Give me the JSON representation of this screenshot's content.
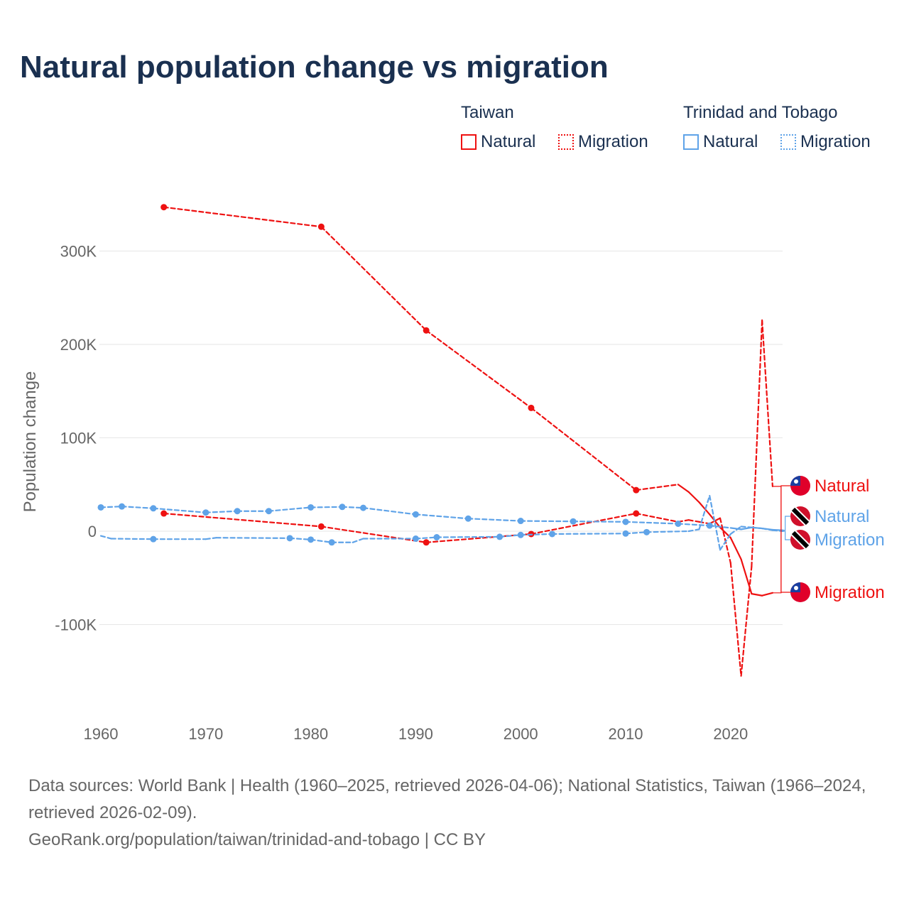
{
  "title": "Natural population change vs migration",
  "legend": {
    "groups": [
      {
        "name": "Taiwan",
        "items": [
          {
            "label": "Natural",
            "style": "solid"
          },
          {
            "label": "Migration",
            "style": "dotted"
          }
        ],
        "color": "#ee1111"
      },
      {
        "name": "Trinidad and Tobago",
        "items": [
          {
            "label": "Natural",
            "style": "solid"
          },
          {
            "label": "Migration",
            "style": "dotted"
          }
        ],
        "color": "#5fa3e8"
      }
    ]
  },
  "footer": {
    "sources": "Data sources: World Bank | Health (1960–2025, retrieved 2026-04-06); National Statistics, Taiwan (1966–2024, retrieved 2026-02-09).",
    "credit": "GeoRank.org/population/taiwan/trinidad-and-tobago | CC BY"
  },
  "chart_data": {
    "type": "line",
    "title": "Natural population change vs migration",
    "xlabel": "",
    "ylabel": "Population change",
    "xlim": [
      1960,
      2025
    ],
    "ylim": [
      -160000,
      360000
    ],
    "xticks": [
      1960,
      1970,
      1980,
      1990,
      2000,
      2010,
      2020
    ],
    "xtick_labels": [
      "1960",
      "1970",
      "1980",
      "1990",
      "2000",
      "2010",
      "2020"
    ],
    "yticks": [
      -100000,
      0,
      100000,
      200000,
      300000
    ],
    "ytick_labels": [
      "-100K",
      "0",
      "100K",
      "200K",
      "300K"
    ],
    "grid": true,
    "legend_position": "top-right",
    "series": [
      {
        "name": "Taiwan Natural",
        "end_label": "Natural",
        "color": "#ee1111",
        "dash": false,
        "x": [
          1966,
          1981,
          1991,
          2001,
          2011,
          2015,
          2016,
          2017,
          2018,
          2019,
          2020,
          2021,
          2022,
          2023,
          2024
        ],
        "y": [
          347000,
          326000,
          215000,
          132000,
          44000,
          50000,
          42000,
          31000,
          18000,
          4000,
          -7000,
          -30000,
          -67000,
          -69000,
          -66000
        ]
      },
      {
        "name": "Taiwan Migration",
        "end_label": "Migration",
        "color": "#ee1111",
        "dash": true,
        "x": [
          1966,
          1981,
          1991,
          2001,
          2011,
          2015,
          2016,
          2017,
          2018,
          2019,
          2020,
          2021,
          2022,
          2023,
          2024
        ],
        "y": [
          19000,
          5000,
          -12000,
          -3000,
          19000,
          10000,
          12000,
          10000,
          8000,
          14000,
          -34000,
          -155000,
          -38000,
          226000,
          48000
        ]
      },
      {
        "name": "Trinidad and Tobago Natural",
        "end_label": "Natural",
        "color": "#5fa3e8",
        "dash": false,
        "x": [
          1960,
          1962,
          1965,
          1970,
          1973,
          1976,
          1980,
          1983,
          1985,
          1990,
          1995,
          2000,
          2005,
          2010,
          2015,
          2018,
          2020,
          2021,
          2022,
          2023,
          2024,
          2025
        ],
        "y": [
          25500,
          26500,
          24500,
          20000,
          21500,
          21500,
          25500,
          26000,
          25000,
          18000,
          13500,
          11000,
          10500,
          10000,
          8000,
          6000,
          3500,
          2000,
          4000,
          3000,
          1500,
          1000
        ]
      },
      {
        "name": "Trinidad and Tobago Migration",
        "end_label": "Migration",
        "color": "#5fa3e8",
        "dash": true,
        "x": [
          1960,
          1961,
          1965,
          1970,
          1971,
          1978,
          1980,
          1982,
          1984,
          1985,
          1990,
          1992,
          1998,
          2000,
          2003,
          2010,
          2012,
          2016,
          2017,
          2018,
          2019,
          2020,
          2021,
          2022,
          2023,
          2024,
          2025
        ],
        "y": [
          -5000,
          -8000,
          -8500,
          -8500,
          -7000,
          -7500,
          -9000,
          -12000,
          -12000,
          -8000,
          -8000,
          -6500,
          -6000,
          -4000,
          -3000,
          -2500,
          -1000,
          0,
          2000,
          38000,
          -20000,
          -3000,
          5000,
          4000,
          3000,
          1000,
          0
        ]
      }
    ]
  }
}
